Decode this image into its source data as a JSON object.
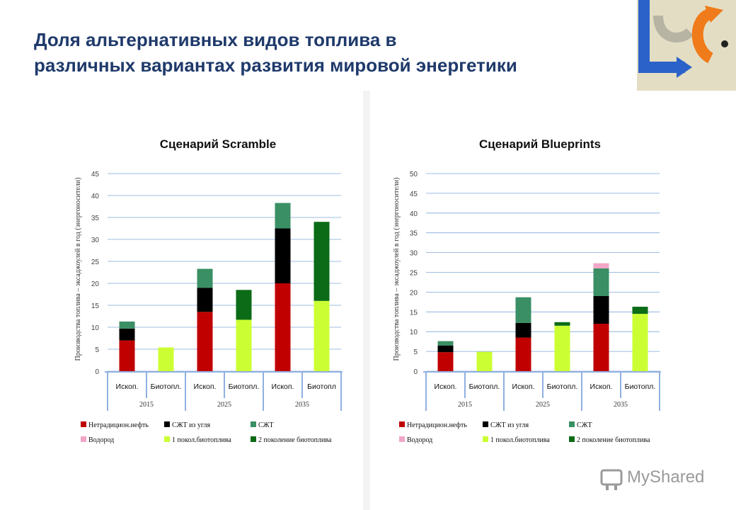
{
  "title": {
    "line1": "Доля альтернативных видов топлива в",
    "line2": "различных вариантах развития мировой энергетики"
  },
  "colors": {
    "title": "#1f3a6b",
    "nontrad_oil": "#c00000",
    "ctl": "#000000",
    "gtl": "#3a8f64",
    "hydrogen": "#f2a6c8",
    "biofuel_1gen": "#ccff33",
    "biofuel_2gen": "#0b6b17",
    "grid": "#7fa7d9",
    "axis_frame": "#8fb0e0"
  },
  "legend": [
    {
      "key": "nontrad_oil",
      "label": "Нетрадицион.нефть",
      "color": "#c00000"
    },
    {
      "key": "ctl",
      "label": "СЖТ из угля",
      "color": "#000000"
    },
    {
      "key": "gtl",
      "label": "СЖТ",
      "color": "#3a8f64"
    },
    {
      "key": "hydrogen",
      "label": "Водород",
      "color": "#f2a6c8"
    },
    {
      "key": "biofuel_1gen",
      "label": "1 покол.биотоплива",
      "color": "#ccff33"
    },
    {
      "key": "biofuel_2gen",
      "label": "2 поколение биотоплива",
      "color": "#0b6b17"
    }
  ],
  "watermark": "MyShared",
  "chart_data": [
    {
      "type": "bar",
      "stacked": true,
      "title": "Сценарий Scramble",
      "ylabel": "Производства топлива – эксаджоулей в год (энергоносители)",
      "ylim": [
        0,
        45
      ],
      "yticks": [
        0,
        5,
        10,
        15,
        20,
        25,
        30,
        35,
        40,
        45
      ],
      "groups": [
        "2015",
        "2025",
        "2035"
      ],
      "categories": [
        "Ископ.",
        "Биотопл.",
        "Ископ.",
        "Биотопл.",
        "Ископ.",
        "Биотопл"
      ],
      "series": [
        {
          "name": "Нетрадицион.нефть",
          "key": "nontrad_oil",
          "values": [
            7,
            0,
            13.5,
            0,
            20,
            0
          ]
        },
        {
          "name": "СЖТ из угля",
          "key": "ctl",
          "values": [
            2.7,
            0,
            5.5,
            0,
            12.5,
            0
          ]
        },
        {
          "name": "СЖТ",
          "key": "gtl",
          "values": [
            1.6,
            0,
            4.3,
            0,
            5.8,
            0
          ]
        },
        {
          "name": "Водород",
          "key": "hydrogen",
          "values": [
            0,
            0,
            0,
            0,
            0,
            0
          ]
        },
        {
          "name": "1 покол.биотоплива",
          "key": "biofuel_1gen",
          "values": [
            0,
            5.4,
            0,
            11.7,
            0,
            16
          ]
        },
        {
          "name": "2 поколение биотоплива",
          "key": "biofuel_2gen",
          "values": [
            0,
            0,
            0,
            6.8,
            0,
            18
          ]
        }
      ]
    },
    {
      "type": "bar",
      "stacked": true,
      "title": "Сценарий Blueprints",
      "ylabel": "Производства топлива – эксаджоулей в год (энергоносители)",
      "ylim": [
        0,
        50
      ],
      "yticks": [
        0,
        5,
        10,
        15,
        20,
        25,
        30,
        35,
        40,
        45,
        50
      ],
      "groups": [
        "2015",
        "2025",
        "2035"
      ],
      "categories": [
        "Ископ.",
        "Биотопл.",
        "Ископ.",
        "Биотопл.",
        "Ископ.",
        "Биотопл."
      ],
      "series": [
        {
          "name": "Нетрадицион.нефть",
          "key": "nontrad_oil",
          "values": [
            4.8,
            0,
            8.5,
            0,
            12,
            0
          ]
        },
        {
          "name": "СЖТ из угля",
          "key": "ctl",
          "values": [
            1.7,
            0,
            3.7,
            0,
            7,
            0
          ]
        },
        {
          "name": "СЖТ",
          "key": "gtl",
          "values": [
            1.1,
            0,
            6.5,
            0,
            7,
            0
          ]
        },
        {
          "name": "Водород",
          "key": "hydrogen",
          "values": [
            0,
            0,
            0,
            0,
            1.3,
            0
          ]
        },
        {
          "name": "1 покол.биотоплива",
          "key": "biofuel_1gen",
          "values": [
            0,
            4.9,
            0,
            11.5,
            0,
            14.5
          ]
        },
        {
          "name": "2 поколение биотоплива",
          "key": "biofuel_2gen",
          "values": [
            0,
            0,
            0,
            0.9,
            0,
            1.8
          ]
        }
      ]
    }
  ]
}
